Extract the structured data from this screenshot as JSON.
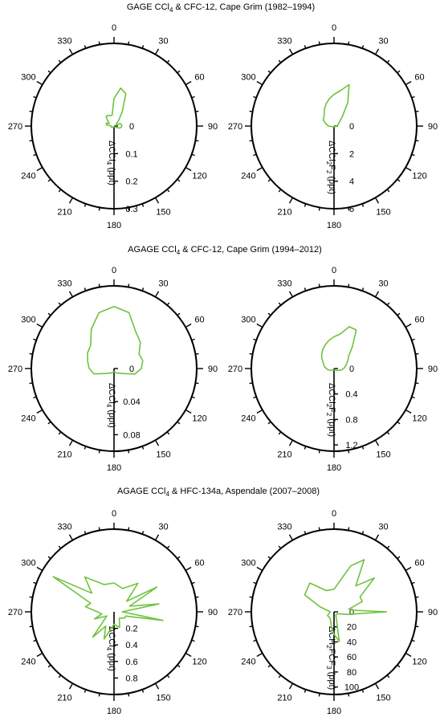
{
  "colors": {
    "series": "#6ec33e",
    "axis": "#000000"
  },
  "angle_labels": [
    "0",
    "30",
    "60",
    "90",
    "120",
    "150",
    "180",
    "210",
    "240",
    "270",
    "300",
    "330"
  ],
  "rows": [
    {
      "title_prefix": "GAGE CCl",
      "title_sub": "4",
      "title_suffix": " & CFC-12, Cape Grim (1982–1994)",
      "panels": [
        {
          "ylabel_parts": [
            [
              "ΔCCl",
              ""
            ],
            [
              "4",
              "sub"
            ],
            [
              " (ppt)",
              ""
            ]
          ],
          "radial_ticks": [
            "0",
            "0.1",
            "0.2",
            "0.3"
          ],
          "rmax": 0.3
        },
        {
          "ylabel_parts": [
            [
              "ΔCCl",
              ""
            ],
            [
              "2",
              "sub"
            ],
            [
              "F",
              ""
            ],
            [
              "2",
              "sub"
            ],
            [
              " (ppt)",
              ""
            ]
          ],
          "radial_ticks": [
            "0",
            "2",
            "4",
            "6"
          ],
          "rmax": 6
        }
      ]
    },
    {
      "title_prefix": "AGAGE CCl",
      "title_sub": "4",
      "title_suffix": " & CFC-12, Cape Grim (1994–2012)",
      "panels": [
        {
          "ylabel_parts": [
            [
              "ΔCCl",
              ""
            ],
            [
              "4",
              "sub"
            ],
            [
              " (ppt)",
              ""
            ]
          ],
          "radial_ticks": [
            "0",
            "0.04",
            "0.08"
          ],
          "rmax": 0.1
        },
        {
          "ylabel_parts": [
            [
              "ΔCCl",
              ""
            ],
            [
              "2",
              "sub"
            ],
            [
              "F",
              ""
            ],
            [
              "2",
              "sub"
            ],
            [
              " (ppt)",
              ""
            ]
          ],
          "radial_ticks": [
            "0",
            "0.4",
            "0.8",
            "1.2"
          ],
          "rmax": 1.3
        }
      ]
    },
    {
      "title_prefix": "AGAGE CCl",
      "title_sub": "4",
      "title_suffix": " & HFC-134a, Aspendale (2007–2008)",
      "panels": [
        {
          "ylabel_parts": [
            [
              "ΔCCl",
              ""
            ],
            [
              "4",
              "sub"
            ],
            [
              " (ppt)",
              ""
            ]
          ],
          "radial_ticks": [
            "0.2",
            "0.4",
            "0.6",
            "0.8"
          ],
          "rmax": 1.0
        },
        {
          "ylabel_parts": [
            [
              "ΔCH",
              ""
            ],
            [
              "2",
              "sub"
            ],
            [
              "FCF",
              ""
            ],
            [
              "3",
              "sub"
            ],
            [
              " (ppt)",
              ""
            ]
          ],
          "radial_ticks": [
            "0",
            "20",
            "40",
            "60",
            "80",
            "100"
          ],
          "rmax": 110
        }
      ]
    }
  ],
  "chart_data": [
    {
      "type": "polar-line",
      "title": "GAGE CCl4 & CFC-12, Cape Grim (1982–1994)",
      "ylabel": "ΔCCl4 (ppt)",
      "rlim": [
        0,
        0.3
      ],
      "angles_deg": [
        0,
        10,
        20,
        30,
        40,
        50,
        60,
        70,
        80,
        90,
        100,
        110,
        120,
        130,
        140,
        150,
        160,
        170,
        180,
        190,
        200,
        210,
        220,
        240,
        260,
        270,
        280,
        290,
        300,
        310,
        320,
        330,
        340,
        350
      ],
      "values": [
        0.1,
        0.14,
        0.125,
        0.06,
        0.025,
        0.01,
        0.012,
        0.025,
        0.028,
        0.028,
        0.026,
        0.022,
        0.01,
        0.005,
        0.003,
        0.003,
        0.003,
        0.003,
        0.002,
        0.003,
        0.003,
        0.003,
        0.005,
        0.01,
        0.01,
        0.01,
        0.028,
        0.03,
        0.02,
        0.03,
        0.045,
        0.045,
        0.04,
        0.04
      ]
    },
    {
      "type": "polar-line",
      "title": "GAGE CCl4 & CFC-12, Cape Grim (1982–1994)",
      "ylabel": "ΔCCl2F2 (ppt)",
      "rlim": [
        0,
        6
      ],
      "angles_deg": [
        0,
        10,
        20,
        30,
        40,
        60,
        80,
        90,
        100,
        120,
        150,
        180,
        210,
        240,
        260,
        270,
        280,
        290,
        300,
        320,
        330,
        340,
        350
      ],
      "values": [
        2.3,
        2.6,
        3.2,
        2.0,
        1.0,
        0.4,
        0.25,
        0.2,
        0.15,
        0.08,
        0.05,
        0.05,
        0.05,
        0.08,
        0.2,
        0.4,
        0.5,
        0.7,
        0.9,
        1.1,
        1.4,
        1.7,
        2.0
      ]
    },
    {
      "type": "polar-line",
      "title": "AGAGE CCl4 & CFC-12, Cape Grim (1994–2012)",
      "ylabel": "ΔCCl4 (ppt)",
      "rlim": [
        0,
        0.1
      ],
      "angles_deg": [
        0,
        15,
        30,
        45,
        60,
        75,
        90,
        105,
        120,
        150,
        180,
        210,
        240,
        255,
        270,
        285,
        300,
        315,
        330,
        345
      ],
      "values": [
        0.075,
        0.07,
        0.052,
        0.045,
        0.035,
        0.036,
        0.033,
        0.026,
        0.012,
        0.006,
        0.004,
        0.006,
        0.012,
        0.025,
        0.03,
        0.033,
        0.037,
        0.04,
        0.055,
        0.07
      ]
    },
    {
      "type": "polar-line",
      "title": "AGAGE CCl4 & CFC-12, Cape Grim (1994–2012)",
      "ylabel": "ΔCCl2F2 (ppt)",
      "rlim": [
        0,
        1.3
      ],
      "angles_deg": [
        0,
        10,
        20,
        30,
        40,
        50,
        60,
        80,
        90,
        100,
        120,
        150,
        180,
        210,
        240,
        260,
        270,
        280,
        290,
        300,
        310,
        320,
        330,
        340,
        350
      ],
      "values": [
        0.5,
        0.55,
        0.7,
        0.7,
        0.45,
        0.3,
        0.25,
        0.18,
        0.15,
        0.12,
        0.06,
        0.03,
        0.02,
        0.02,
        0.06,
        0.1,
        0.12,
        0.15,
        0.17,
        0.2,
        0.25,
        0.3,
        0.35,
        0.4,
        0.45
      ]
    },
    {
      "type": "polar-line",
      "title": "AGAGE CCl4 & HFC-134a, Aspendale (2007–2008)",
      "ylabel": "ΔCCl4 (ppt)",
      "rlim": [
        0,
        1.0
      ],
      "angles_deg": [
        0,
        20,
        40,
        50,
        60,
        70,
        80,
        90,
        100,
        110,
        120,
        140,
        160,
        180,
        200,
        210,
        220,
        240,
        250,
        260,
        270,
        280,
        290,
        300,
        310,
        320,
        340
      ],
      "values": [
        0.35,
        0.3,
        0.45,
        0.2,
        0.6,
        0.2,
        0.55,
        0.1,
        0.6,
        0.15,
        0.15,
        0.1,
        0.2,
        0.15,
        0.35,
        0.2,
        0.4,
        0.1,
        0.25,
        0.15,
        0.2,
        0.35,
        0.3,
        0.85,
        0.35,
        0.55,
        0.35
      ]
    },
    {
      "type": "polar-line",
      "title": "AGAGE CCl4 & HFC-134a, Aspendale (2007–2008)",
      "ylabel": "ΔCH2FCF3 (ppt)",
      "rlim": [
        0,
        110
      ],
      "angles_deg": [
        0,
        20,
        30,
        40,
        50,
        60,
        70,
        80,
        85,
        90,
        95,
        100,
        120,
        150,
        170,
        180,
        190,
        210,
        240,
        270,
        290,
        300,
        320,
        340
      ],
      "values": [
        30,
        65,
        80,
        45,
        70,
        40,
        40,
        20,
        25,
        70,
        30,
        20,
        5,
        5,
        40,
        30,
        20,
        10,
        10,
        5,
        20,
        45,
        50,
        30
      ]
    }
  ]
}
